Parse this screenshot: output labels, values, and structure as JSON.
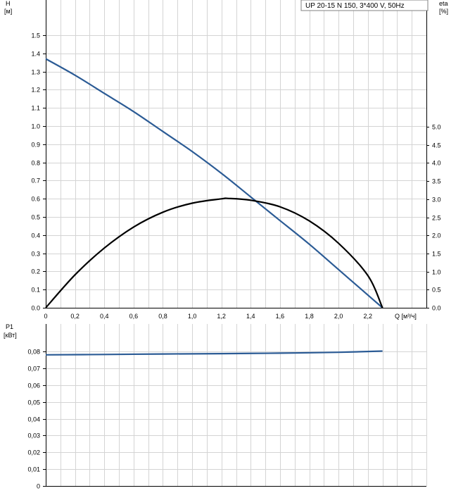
{
  "legend": {
    "label": "UP 20-15 N 150, 3*400 V, 50Hz"
  },
  "chart_data": [
    {
      "type": "line",
      "name": "head-efficiency",
      "ylabel_left": [
        "H",
        "[м]"
      ],
      "ylabel_right": [
        "eta",
        "[%]"
      ],
      "xlabel": "Q [м³/ч]",
      "xlim": [
        0,
        2.6
      ],
      "ylim_left": [
        0,
        1.5
      ],
      "ylim_right": [
        0,
        5.0
      ],
      "x_ticks": [
        "0",
        "0,2",
        "0,4",
        "0,6",
        "0,8",
        "1,0",
        "1,2",
        "1,4",
        "1,6",
        "1,8",
        "2,0",
        "2,2"
      ],
      "y_ticks_left": [
        "0.0",
        "0.1",
        "0.2",
        "0.3",
        "0.4",
        "0.5",
        "0.6",
        "0.7",
        "0.8",
        "0.9",
        "1.0",
        "1.1",
        "1.2",
        "1.3",
        "1.4",
        "1.5"
      ],
      "y_ticks_right": [
        "0.0",
        "0.5",
        "1.0",
        "1.5",
        "2.0",
        "2.5",
        "3.0",
        "3.5",
        "4.0",
        "4.5",
        "5.0"
      ],
      "grid": true,
      "series": [
        {
          "color": "#2b5b95",
          "axis": "left",
          "x": [
            0,
            0.2,
            0.4,
            0.6,
            0.8,
            1.0,
            1.2,
            1.4,
            1.6,
            1.8,
            2.0,
            2.2,
            2.3
          ],
          "y": [
            1.37,
            1.28,
            1.18,
            1.08,
            0.97,
            0.86,
            0.74,
            0.61,
            0.48,
            0.35,
            0.21,
            0.07,
            0.0
          ]
        },
        {
          "color": "#000000",
          "axis": "right",
          "x": [
            0,
            0.2,
            0.4,
            0.6,
            0.8,
            1.0,
            1.2,
            1.25,
            1.4,
            1.6,
            1.8,
            2.0,
            2.2,
            2.3
          ],
          "y": [
            0,
            0.91,
            1.65,
            2.23,
            2.64,
            2.89,
            3.01,
            3.02,
            2.97,
            2.79,
            2.4,
            1.78,
            0.89,
            0
          ]
        }
      ]
    },
    {
      "type": "line",
      "name": "power",
      "ylabel": [
        "P1",
        "[кВт]"
      ],
      "xlim": [
        0,
        2.6
      ],
      "ylim": [
        0,
        0.09
      ],
      "y_ticks": [
        "0",
        "0,01",
        "0,02",
        "0,03",
        "0,04",
        "0,05",
        "0,06",
        "0,07",
        "0,08"
      ],
      "grid": true,
      "series": [
        {
          "color": "#2b5b95",
          "x": [
            0,
            0.4,
            0.8,
            1.2,
            1.6,
            2.0,
            2.3
          ],
          "y": [
            0.078,
            0.0782,
            0.0785,
            0.0787,
            0.079,
            0.0795,
            0.0802
          ]
        }
      ]
    }
  ]
}
